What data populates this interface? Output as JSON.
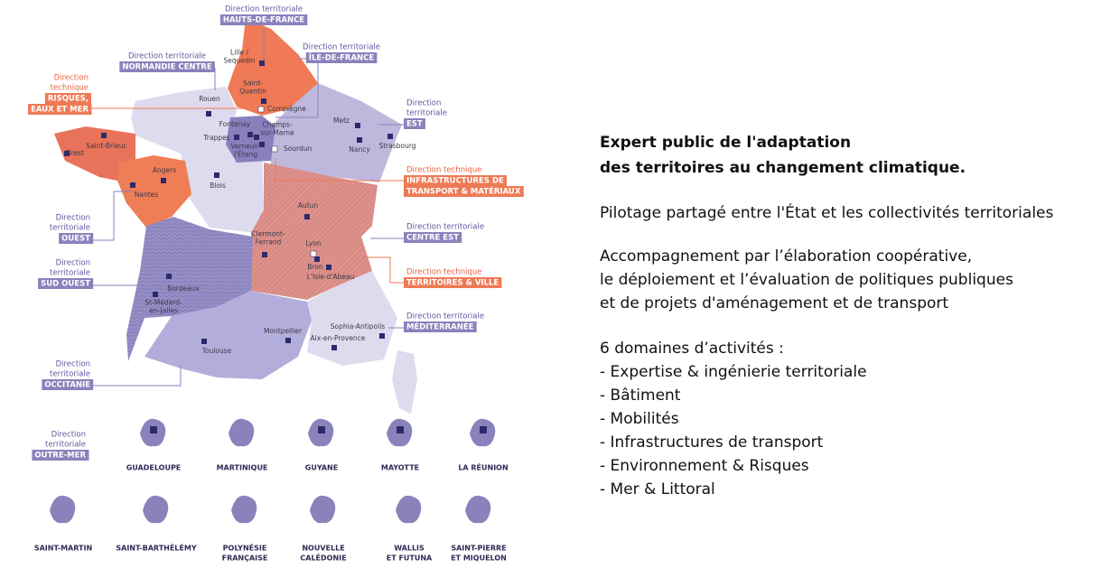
{
  "map": {
    "directions": [
      {
        "label": [
          "Direction territoriale"
        ],
        "name": [
          "HAUTS-DE-FRANCE"
        ]
      },
      {
        "label": [
          "Direction territoriale"
        ],
        "name": [
          "NORMANDIE CENTRE"
        ]
      },
      {
        "label": [
          "Direction territoriale"
        ],
        "name": [
          "ÎLE-DE-FRANCE"
        ]
      },
      {
        "label": [
          "Direction",
          "technique"
        ],
        "name": [
          "RISQUES,",
          "EAUX ET MER"
        ]
      },
      {
        "label": [
          "Direction",
          "territoriale"
        ],
        "name": [
          "EST"
        ]
      },
      {
        "label": [
          "Direction technique"
        ],
        "name": [
          "INFRASTRUCTURES DE",
          "TRANSPORT & MATÉRIAUX"
        ]
      },
      {
        "label": [
          "Direction",
          "territoriale"
        ],
        "name": [
          "OUEST"
        ]
      },
      {
        "label": [
          "Direction territoriale"
        ],
        "name": [
          "CENTRE EST"
        ]
      },
      {
        "label": [
          "Direction",
          "territoriale"
        ],
        "name": [
          "SUD OUEST"
        ]
      },
      {
        "label": [
          "Direction technique"
        ],
        "name": [
          "TERRITOIRES & VILLE"
        ]
      },
      {
        "label": [
          "Direction territoriale"
        ],
        "name": [
          "MÉDITERRANÉE"
        ]
      },
      {
        "label": [
          "Direction",
          "territoriale"
        ],
        "name": [
          "OCCITANIE"
        ]
      },
      {
        "label": [
          "Direction",
          "territoriale"
        ],
        "name": [
          "OUTRE-MER"
        ]
      }
    ],
    "cities": [
      [
        "Lille /",
        "Sequedin"
      ],
      [
        "Saint-",
        "Quentin"
      ],
      [
        "Rouen"
      ],
      [
        "Compiègne"
      ],
      [
        "Metz"
      ],
      [
        "Nancy"
      ],
      [
        "Strasbourg"
      ],
      [
        "Fontenay"
      ],
      [
        "Trappes"
      ],
      [
        "Champs-",
        "sur-Marne"
      ],
      [
        "Verneuil-",
        "l'Étang"
      ],
      [
        "Sourdun"
      ],
      [
        "Saint-Brieuc"
      ],
      [
        "Brest"
      ],
      [
        "Angers"
      ],
      [
        "Nantes"
      ],
      [
        "Blois"
      ],
      [
        "Autun"
      ],
      [
        "Clermont-",
        "Ferrand"
      ],
      [
        "Lyon"
      ],
      [
        "Bron"
      ],
      [
        "L'Isle-d'Abeau"
      ],
      [
        "Bordeaux"
      ],
      [
        "St-Médard-",
        "en-Jalles"
      ],
      [
        "Toulouse"
      ],
      [
        "Montpellier"
      ],
      [
        "Sophia-Antipolis"
      ],
      [
        "Aix-en-Provence"
      ]
    ],
    "overseas": [
      [
        "GUADELOUPE"
      ],
      [
        "MARTINIQUE"
      ],
      [
        "GUYANE"
      ],
      [
        "MAYOTTE"
      ],
      [
        "LA RÉUNION"
      ],
      [
        "SAINT-MARTIN"
      ],
      [
        "SAINT-BARTHÉLÉMY"
      ],
      [
        "POLYNÉSIE",
        "FRANÇAISE"
      ],
      [
        "NOUVELLE",
        "CALÉDONIE"
      ],
      [
        "WALLIS",
        "ET FUTUNA"
      ],
      [
        "SAINT-PIERRE",
        "ET MIQUELON"
      ]
    ]
  },
  "text": {
    "heading": [
      "Expert public de l'adaptation",
      "des territoires au changement climatique."
    ],
    "paragraphs": [
      [
        "Pilotage partagé entre l'État et les collectivités territoriales"
      ],
      [
        "Accompagnement par l’élaboration coopérative,",
        "le déploiement et l’évaluation de politiques publiques",
        "et de projets d'aménagement et de transport"
      ]
    ],
    "domains_title": "6 domaines d’activités :",
    "domains": [
      "- Expertise & ingénierie territoriale",
      "- Bâtiment",
      "- Mobilités",
      "- Infrastructures de transport",
      "- Environnement & Risques",
      "- Mer & Littoral"
    ]
  }
}
